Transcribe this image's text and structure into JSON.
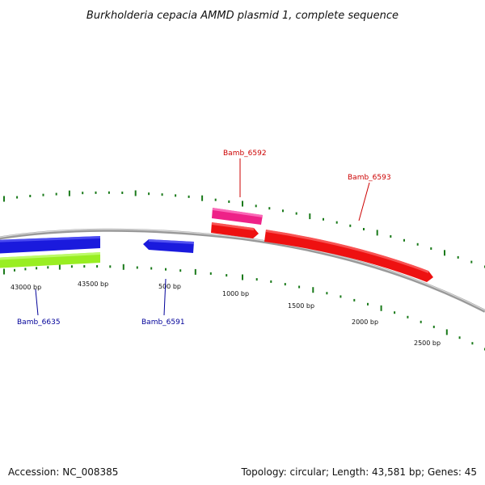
{
  "title": "Burkholderia cepacia AMMD plasmid 1, complete sequence",
  "footer": {
    "accession": "Accession: NC_008385",
    "summary": "Topology: circular; Length: 43,581 bp; Genes: 45"
  },
  "colors": {
    "backbone": "#8a8a8a",
    "tick": "#1a7a1a",
    "label_forward": "#cc0000",
    "label_reverse": "#000099"
  },
  "bp_labels": [
    "43000 bp",
    "43500 bp",
    "500 bp",
    "1000 bp",
    "1500 bp",
    "2000 bp",
    "2500 bp"
  ],
  "genes": [
    {
      "id": "Bamb_6592",
      "label": "Bamb_6592",
      "color": "#ee2288",
      "strand": "+"
    },
    {
      "id": "Bamb_6593",
      "label": "Bamb_6593",
      "color": "#ee1111",
      "strand": "+"
    },
    {
      "id": "Bamb_6635",
      "label": "Bamb_6635",
      "color": "#1a1add",
      "strand": "-"
    },
    {
      "id": "Bamb_6591",
      "label": "Bamb_6591",
      "color": "#1a1add",
      "strand": "-"
    }
  ],
  "features": [
    {
      "id": "red-short",
      "color": "#ee1111"
    },
    {
      "id": "lime-band",
      "color": "#99ee22"
    }
  ]
}
